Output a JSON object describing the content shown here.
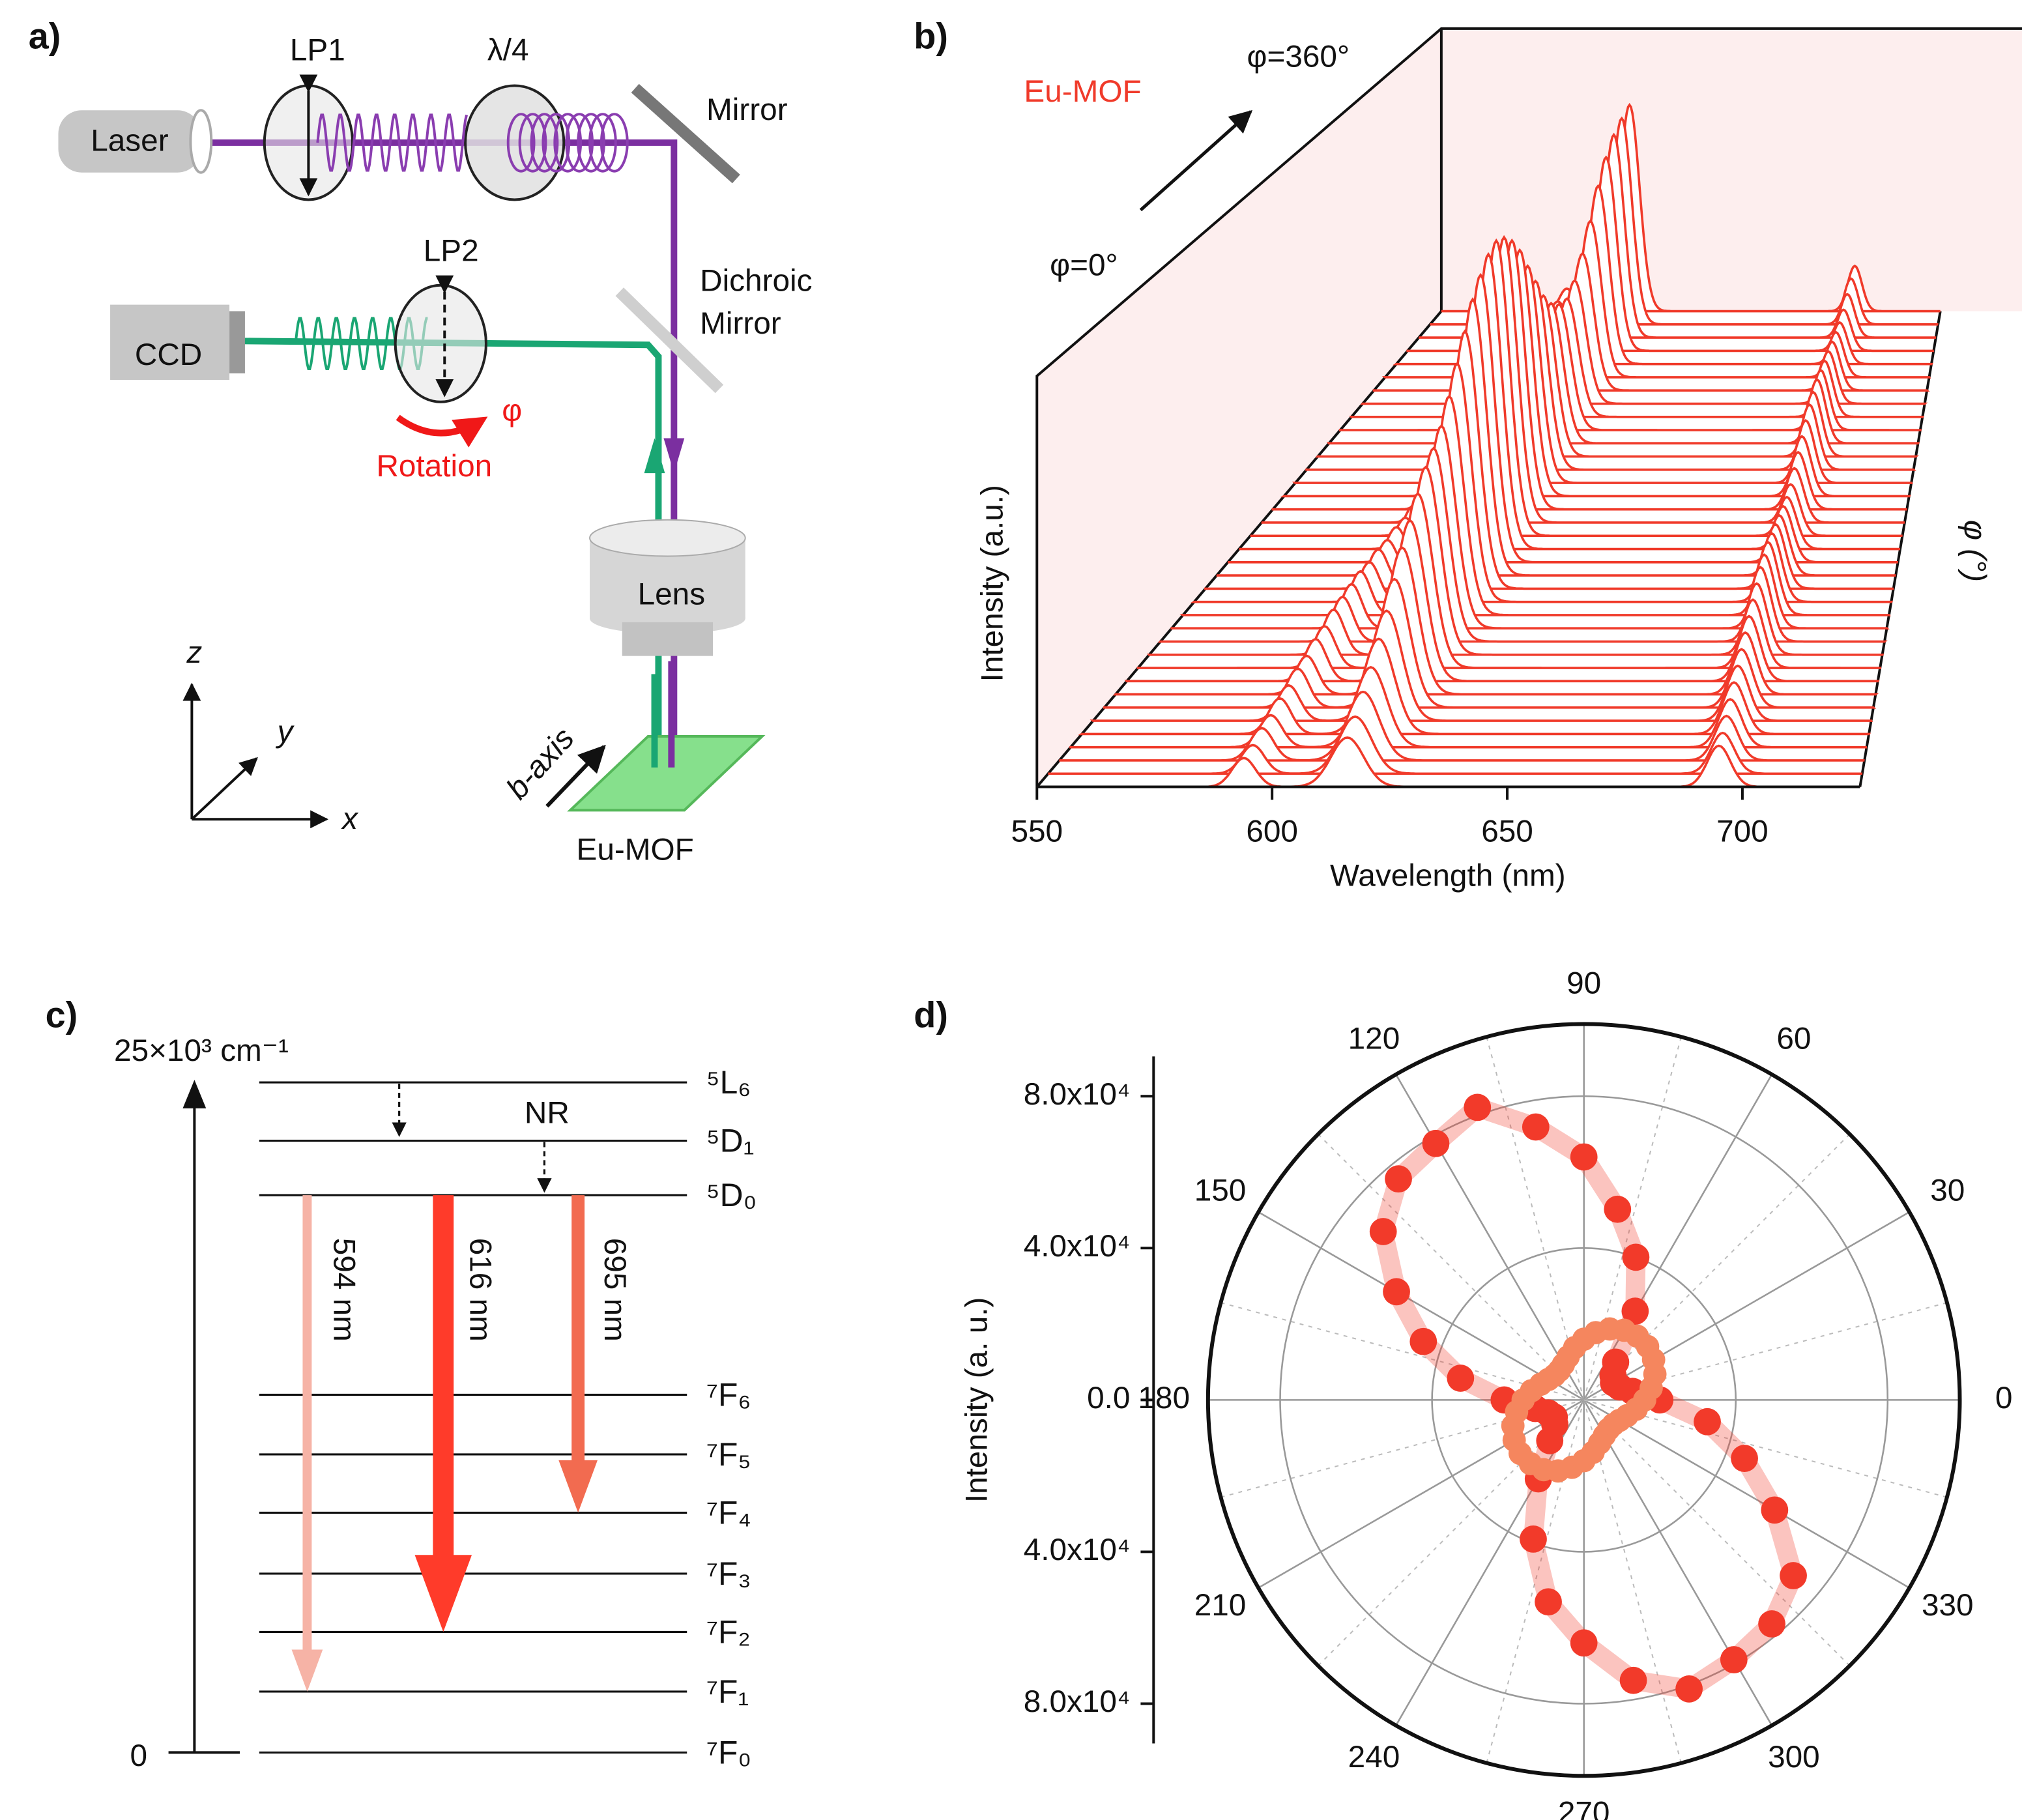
{
  "panel_a": {
    "label": "a)",
    "laser": "Laser",
    "lp1": "LP1",
    "qwp": "λ/4",
    "mirror": "Mirror",
    "lp2": "LP2",
    "ccd": "CCD",
    "dichroic": [
      "Dichroic",
      "Mirror"
    ],
    "phi": "φ",
    "rotation": "Rotation",
    "lens": "Lens",
    "sample": "Eu-MOF",
    "b_axis": "b-axis",
    "axes": {
      "x": "x",
      "y": "y",
      "z": "z"
    }
  },
  "panel_c": {
    "label": "c)",
    "energy_top": "25×10³ cm⁻¹",
    "energy_zero": 0,
    "levels": [
      "⁵L₆",
      "⁵D₁",
      "⁵D₀",
      "⁷F₆",
      "⁷F₅",
      "⁷F₄",
      "⁷F₃",
      "⁷F₂",
      "⁷F₁",
      "⁷F₀"
    ],
    "transitions": [
      "594 nm",
      "616 nm",
      "695 nm"
    ],
    "nr": "NR"
  },
  "chart_data": [
    {
      "type": "waterfall",
      "panel": "b)",
      "annotations": [
        "Eu-MOF",
        "φ=360°",
        "φ=0°"
      ],
      "xlabel": "Wavelength (nm)",
      "ylabel": "Intensity (a.u.)",
      "zlabel": "φ (°)",
      "xlim": [
        550,
        725
      ],
      "xticks": [
        550,
        600,
        650,
        700
      ],
      "ylim": [
        0,
        1
      ],
      "zlim": [
        0,
        360
      ],
      "z": [
        0,
        10,
        20,
        30,
        40,
        50,
        60,
        70,
        80,
        90,
        100,
        110,
        120,
        130,
        140,
        150,
        160,
        170,
        180,
        190,
        200,
        210,
        220,
        230,
        240,
        250,
        260,
        270,
        280,
        290,
        300,
        310,
        320,
        330,
        340,
        350,
        360
      ],
      "color": "#f03a2a",
      "series": [
        {
          "peak": 594,
          "values": [
            0.07,
            0.07,
            0.08,
            0.08,
            0.09,
            0.09,
            0.1,
            0.1,
            0.11,
            0.11,
            0.12,
            0.12,
            0.12,
            0.12,
            0.11,
            0.11,
            0.1,
            0.1,
            0.09,
            0.09,
            0.09,
            0.09,
            0.1,
            0.1,
            0.11,
            0.11,
            0.12,
            0.12,
            0.12,
            0.11,
            0.11,
            0.1,
            0.1,
            0.09,
            0.09,
            0.08,
            0.08
          ]
        },
        {
          "peak": 616,
          "values": [
            0.12,
            0.14,
            0.17,
            0.2,
            0.24,
            0.28,
            0.33,
            0.38,
            0.42,
            0.46,
            0.5,
            0.52,
            0.55,
            0.6,
            0.66,
            0.72,
            0.78,
            0.82,
            0.85,
            0.86,
            0.84,
            0.8,
            0.74,
            0.66,
            0.58,
            0.5,
            0.44,
            0.4,
            0.38,
            0.4,
            0.45,
            0.52,
            0.6,
            0.66,
            0.7,
            0.72,
            0.73
          ]
        },
        {
          "peak": 695,
          "values": [
            0.1,
            0.1,
            0.11,
            0.12,
            0.13,
            0.14,
            0.15,
            0.16,
            0.17,
            0.18,
            0.19,
            0.2,
            0.2,
            0.2,
            0.19,
            0.18,
            0.17,
            0.16,
            0.15,
            0.15,
            0.16,
            0.17,
            0.18,
            0.19,
            0.2,
            0.2,
            0.2,
            0.19,
            0.18,
            0.17,
            0.16,
            0.15,
            0.14,
            0.14,
            0.15,
            0.16,
            0.16
          ]
        }
      ]
    },
    {
      "type": "polar",
      "panel": "d)",
      "ylabel": "Intensity (a. u.)",
      "theta": [
        0,
        10,
        20,
        30,
        40,
        50,
        60,
        70,
        80,
        90,
        100,
        110,
        120,
        130,
        140,
        150,
        160,
        170,
        180,
        190,
        200,
        210,
        220,
        230,
        240,
        250,
        260,
        270,
        280,
        290,
        300,
        310,
        320,
        330,
        340,
        350
      ],
      "thetaticks": [
        0,
        30,
        60,
        90,
        120,
        150,
        180,
        210,
        240,
        270,
        300,
        330
      ],
      "rlim": [
        0,
        99000
      ],
      "rticks": [
        {
          "value": 0,
          "label": "0.0"
        },
        {
          "value": 40000,
          "label": "4.0x10⁴"
        },
        {
          "value": 80000,
          "label": "8.0x10⁴"
        }
      ],
      "series": [
        {
          "color": "#f23a2a",
          "values": [
            20000,
            13000,
            10000,
            9000,
            10000,
            13000,
            27000,
            40000,
            51000,
            64000,
            73000,
            82000,
            78000,
            76000,
            69000,
            57000,
            45000,
            33000,
            21000,
            13000,
            10000,
            9000,
            10000,
            14000,
            24000,
            39000,
            54000,
            64000,
            75000,
            81000,
            79000,
            77000,
            72000,
            58000,
            45000,
            33000
          ]
        },
        {
          "color": "#f5865e",
          "values": [
            16000,
            18000,
            19900,
            21200,
            21900,
            21900,
            21200,
            19900,
            18000,
            16000,
            14000,
            12100,
            10800,
            10100,
            10100,
            10800,
            12100,
            14000,
            16000,
            18000,
            19900,
            21200,
            21900,
            21900,
            21200,
            19900,
            18000,
            16000,
            14000,
            12100,
            10800,
            10100,
            10100,
            10800,
            12100,
            14000
          ]
        }
      ]
    }
  ]
}
